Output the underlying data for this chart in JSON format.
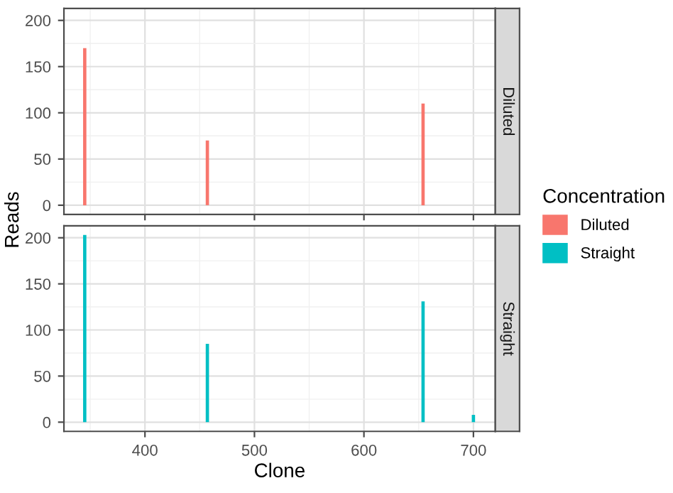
{
  "chart_data": [
    {
      "type": "bar",
      "title": "Diluted",
      "ylabel": "Reads",
      "x": [
        345,
        457,
        654
      ],
      "series": [
        {
          "name": "Diluted",
          "color": "#f8766d",
          "values": [
            170,
            70,
            110
          ]
        }
      ],
      "xlim": [
        326,
        720
      ],
      "xticks": [
        400,
        500,
        600,
        700
      ],
      "ylim": [
        -10,
        213
      ],
      "yticks": [
        0,
        50,
        100,
        150,
        200
      ],
      "tick_labels": "y",
      "grid": true,
      "legend": "right",
      "legend_title": "Concentration"
    },
    {
      "type": "bar",
      "title": "Straight",
      "xlabel": "Clone",
      "x": [
        345,
        457,
        654,
        700
      ],
      "series": [
        {
          "name": "Straight",
          "color": "#00bfc4",
          "values": [
            203,
            85,
            131,
            8
          ]
        }
      ],
      "xlim": [
        326,
        720
      ],
      "xticks": [
        400,
        500,
        600,
        700
      ],
      "ylim": [
        -10,
        213
      ],
      "yticks": [
        0,
        50,
        100,
        150,
        200
      ],
      "grid": true
    }
  ]
}
